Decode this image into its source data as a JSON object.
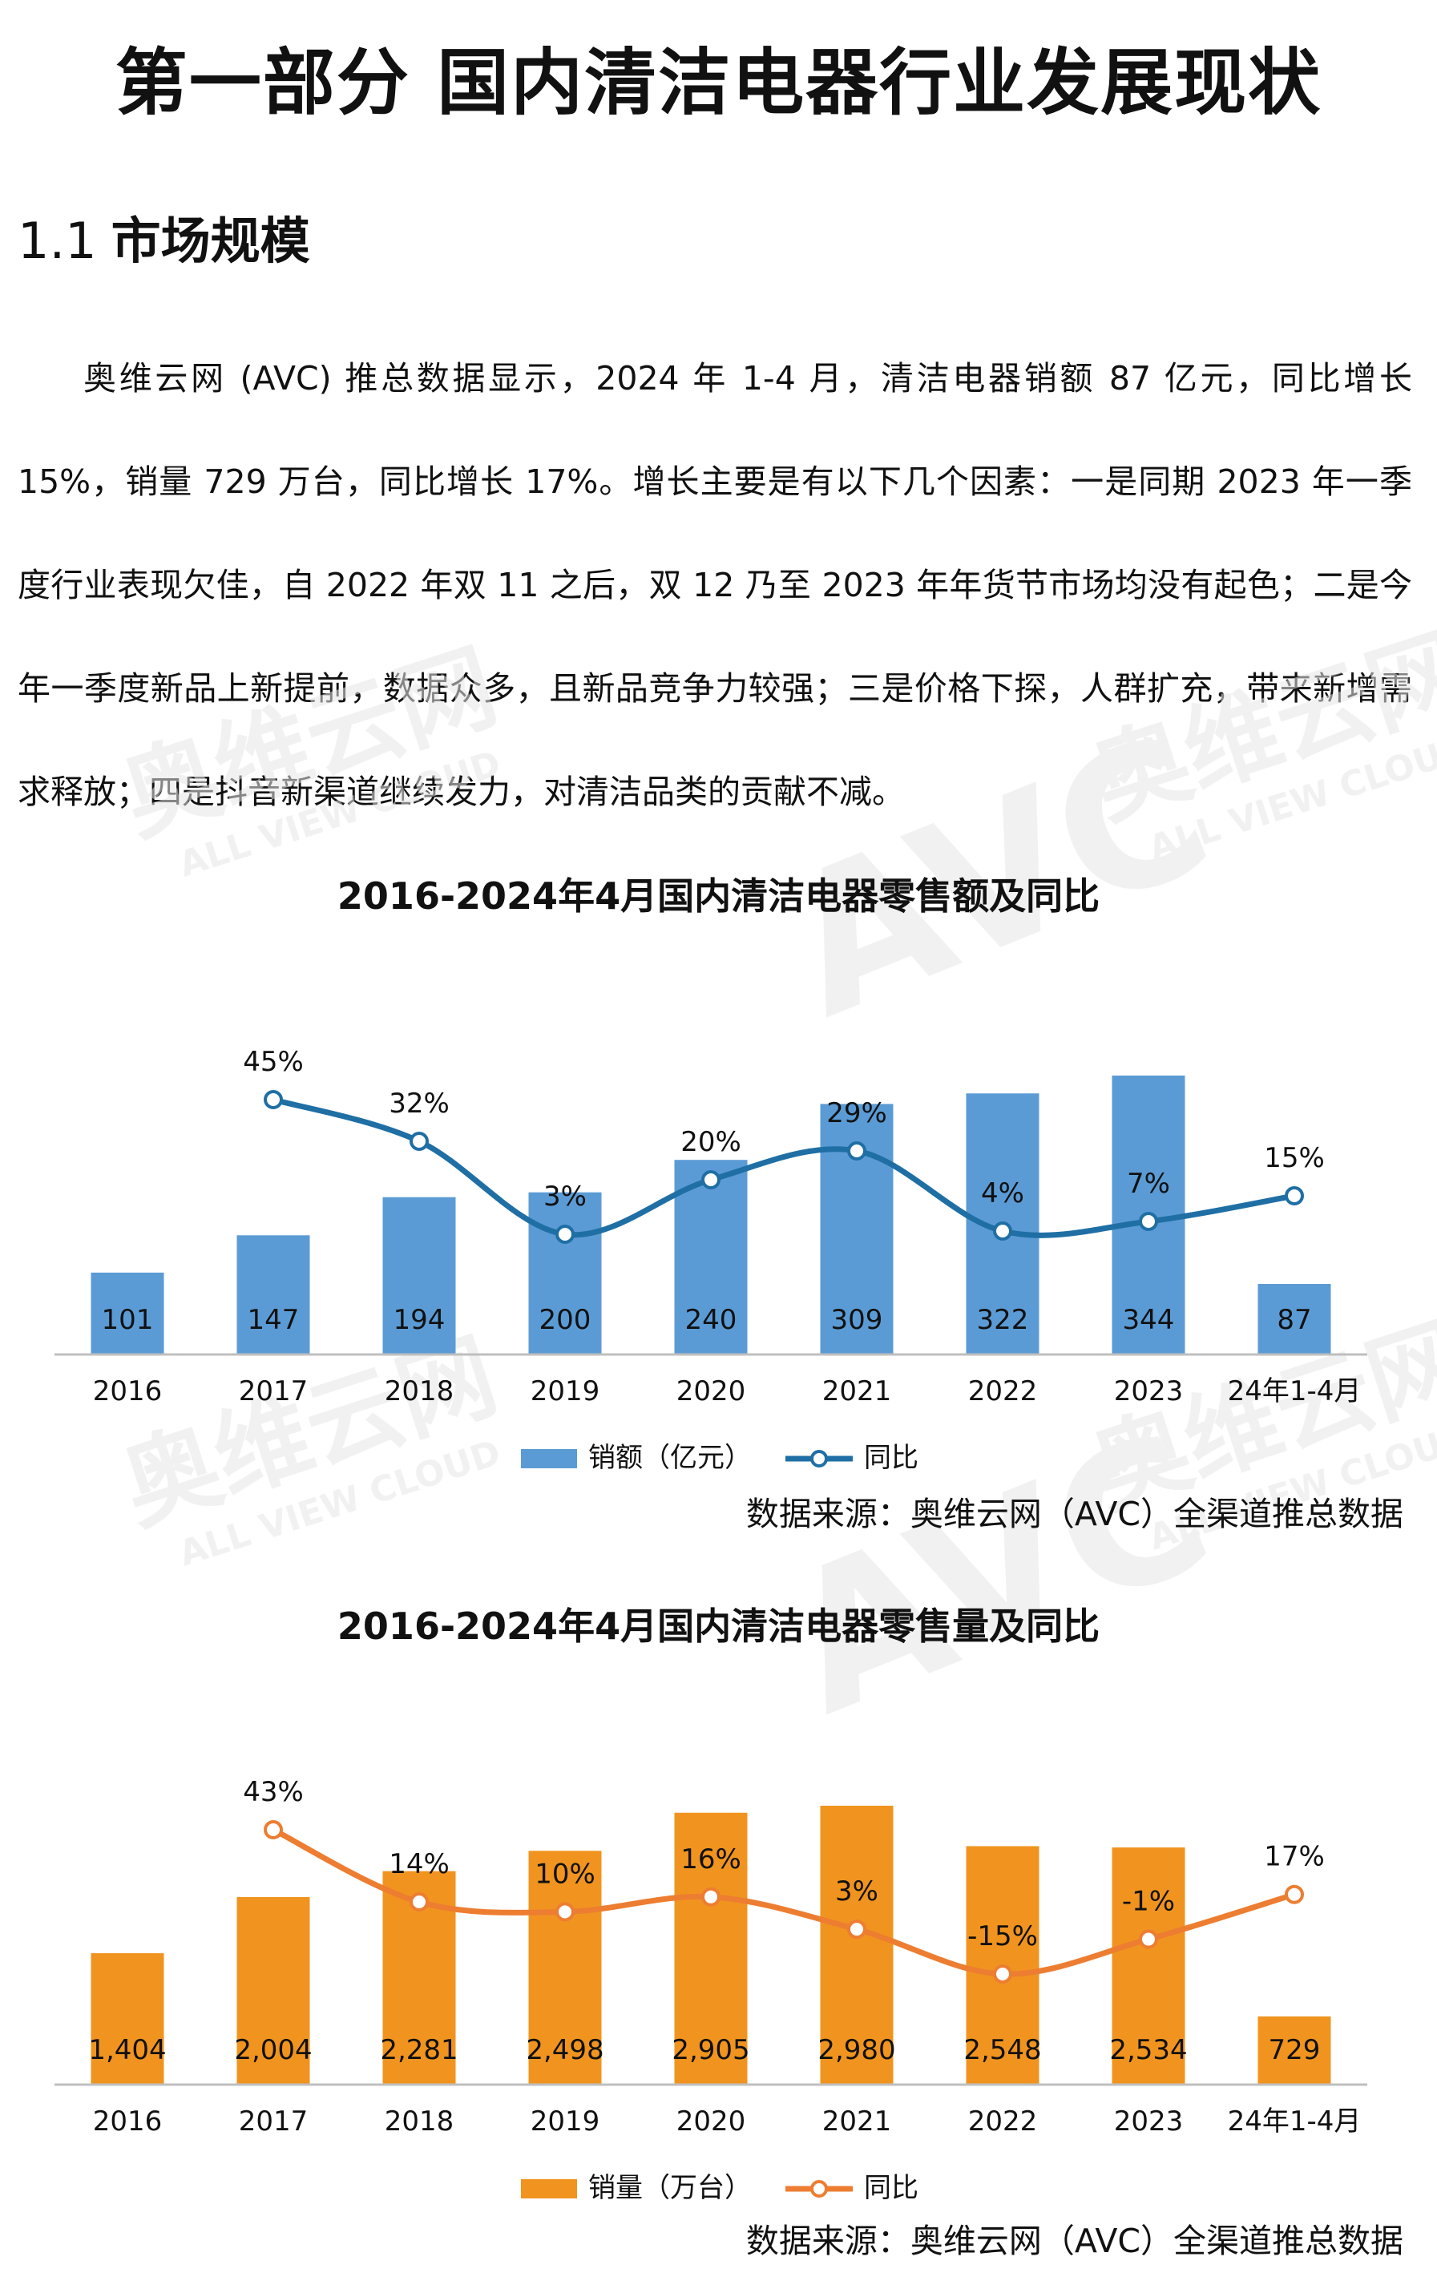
{
  "page_title": "第一部分  国内清洁电器行业发展现状",
  "section": {
    "number": "1.1",
    "title": "市场规模"
  },
  "paragraph": "奥维云网 (AVC) 推总数据显示，2024 年 1-4 月，清洁电器销额 87 亿元，同比增长 15%，销量 729 万台，同比增长 17%。增长主要是有以下几个因素：一是同期 2023 年一季度行业表现欠佳，自 2022 年双 11 之后，双 12 乃至 2023 年年货节市场均没有起色；二是今年一季度新品上新提前，数据众多，且新品竞争力较强；三是价格下探，人群扩充，带来新增需求释放；四是抖音新渠道继续发力，对清洁品类的贡献不减。",
  "watermark": {
    "brand": "奥维云网",
    "sub": "ALL VIEW CLOUD",
    "logo": "AVC"
  },
  "chart_data": [
    {
      "type": "bar",
      "title": "2016-2024年4月国内清洁电器零售额及同比",
      "categories": [
        "2016",
        "2017",
        "2018",
        "2019",
        "2020",
        "2021",
        "2022",
        "2023",
        "24年1-4月"
      ],
      "series": [
        {
          "name": "销额（亿元）",
          "type": "bar",
          "values": [
            101,
            147,
            194,
            200,
            240,
            309,
            322,
            344,
            87
          ],
          "labels": [
            "101",
            "147",
            "194",
            "200",
            "240",
            "309",
            "322",
            "344",
            "87"
          ]
        },
        {
          "name": "同比",
          "type": "line",
          "values": [
            null,
            45,
            32,
            3,
            20,
            29,
            4,
            7,
            15
          ],
          "labels": [
            "",
            "45%",
            "32%",
            "3%",
            "20%",
            "29%",
            "4%",
            "7%",
            "15%"
          ]
        }
      ],
      "bar_max": 344,
      "line_range": [
        0,
        45
      ],
      "colors": {
        "bar": "#5b9bd5",
        "line": "#1f6fa5"
      },
      "legend_position": "bottom",
      "source": "数据来源：奥维云网（AVC）全渠道推总数据"
    },
    {
      "type": "bar",
      "title": "2016-2024年4月国内清洁电器零售量及同比",
      "categories": [
        "2016",
        "2017",
        "2018",
        "2019",
        "2020",
        "2021",
        "2022",
        "2023",
        "24年1-4月"
      ],
      "series": [
        {
          "name": "销量（万台）",
          "type": "bar",
          "values": [
            1404,
            2004,
            2281,
            2498,
            2905,
            2980,
            2548,
            2534,
            729
          ],
          "labels": [
            "1,404",
            "2,004",
            "2,281",
            "2,498",
            "2,905",
            "2,980",
            "2,548",
            "2,534",
            "729"
          ]
        },
        {
          "name": "同比",
          "type": "line",
          "values": [
            null,
            43,
            14,
            10,
            16,
            3,
            -15,
            -1,
            17
          ],
          "labels": [
            "",
            "43%",
            "14%",
            "10%",
            "16%",
            "3%",
            "-15%",
            "-1%",
            "17%"
          ]
        }
      ],
      "bar_max": 2980,
      "line_range": [
        -15,
        43
      ],
      "colors": {
        "bar": "#f0941f",
        "line": "#ed7d31"
      },
      "legend_position": "bottom",
      "source": "数据来源：奥维云网（AVC）全渠道推总数据"
    }
  ]
}
